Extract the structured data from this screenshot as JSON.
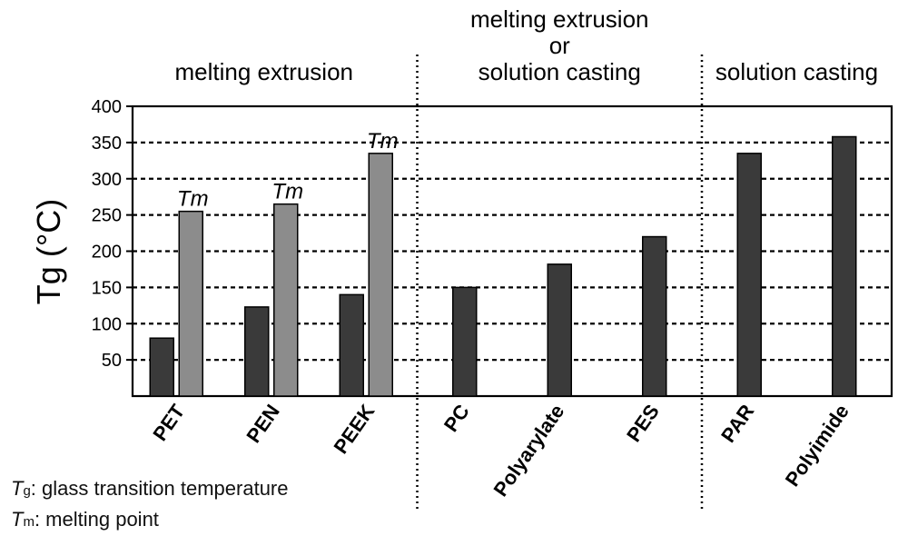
{
  "chart_data": {
    "type": "bar",
    "ylabel": "Tg (°C)",
    "ylim": [
      0,
      400
    ],
    "yticks": [
      50,
      100,
      150,
      200,
      250,
      300,
      350,
      400
    ],
    "grid": "horizontal dashed",
    "groups": [
      {
        "label": "melting extrusion",
        "label_lines": [
          "melting extrusion"
        ]
      },
      {
        "label": "melting extrusion or solution casting",
        "label_lines": [
          "melting extrusion",
          "or",
          "solution casting"
        ]
      },
      {
        "label": "solution casting",
        "label_lines": [
          "solution casting"
        ]
      }
    ],
    "categories": [
      {
        "name": "PET",
        "group": 0,
        "tg": 80,
        "tm": 255
      },
      {
        "name": "PEN",
        "group": 0,
        "tg": 123,
        "tm": 265
      },
      {
        "name": "PEEK",
        "group": 0,
        "tg": 140,
        "tm": 335
      },
      {
        "name": "PC",
        "group": 1,
        "tg": 150,
        "tm": null
      },
      {
        "name": "Polyarylate",
        "group": 1,
        "tg": 182,
        "tm": null
      },
      {
        "name": "PES",
        "group": 1,
        "tg": 220,
        "tm": null
      },
      {
        "name": "PAR",
        "group": 2,
        "tg": 335,
        "tm": null
      },
      {
        "name": "Polyimide",
        "group": 2,
        "tg": 358,
        "tm": null
      }
    ],
    "series": [
      {
        "key": "tg",
        "color": "#3a3a3a"
      },
      {
        "key": "tm",
        "color": "#8c8c8c",
        "bar_label": "Tm"
      }
    ]
  },
  "notes": {
    "tg_symbol": "T",
    "tg_sub": "g",
    "tg_text": ": glass transition temperature",
    "tm_symbol": "T",
    "tm_sub": "m",
    "tm_text": ": melting point"
  }
}
